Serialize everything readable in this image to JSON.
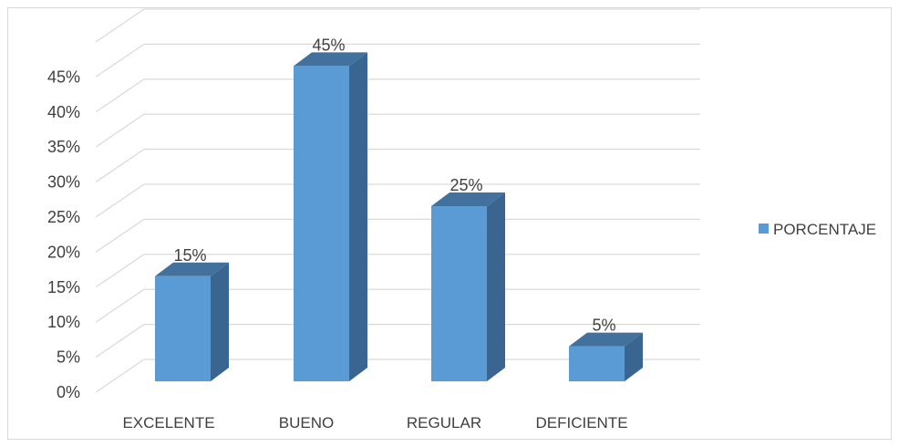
{
  "chart_data": {
    "type": "bar",
    "categories": [
      "EXCELENTE",
      "BUENO",
      "REGULAR",
      "DEFICIENTE"
    ],
    "series": [
      {
        "name": "PORCENTAJE",
        "values": [
          15,
          45,
          25,
          5
        ]
      }
    ],
    "data_labels": [
      "15%",
      "45%",
      "25%",
      "5%"
    ],
    "y_ticks": [
      "0%",
      "5%",
      "10%",
      "15%",
      "20%",
      "25%",
      "30%",
      "35%",
      "40%",
      "45%"
    ],
    "ylim": [
      0,
      50
    ],
    "grid": true,
    "legend": "right",
    "three_d": true,
    "colors": {
      "bar_front": "#5b9bd5",
      "bar_side": "#3a6590",
      "bar_top": "#41719c",
      "grid": "#d9d9d9"
    }
  }
}
